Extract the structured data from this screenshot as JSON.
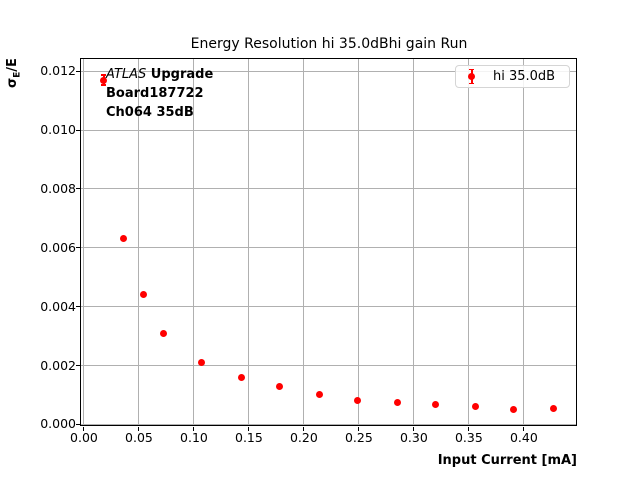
{
  "title": "Energy Resolution hi 35.0dBhi gain Run",
  "axes": {
    "xlabel": "Input Current [mA]",
    "ylabel": {
      "sigma": "σ",
      "sub": "E",
      "rest": "/E"
    }
  },
  "annotation": {
    "line1_italic": "ATLAS",
    "line1_bold": " Upgrade",
    "line2": "Board187722",
    "line3": "Ch064 35dB"
  },
  "legend": {
    "label": "hi 35.0dB"
  },
  "colors": {
    "marker": "#ff0000",
    "grid": "#b0b0b0",
    "axis": "#000000",
    "legend_border": "#d5d5d5",
    "text": "#000000"
  },
  "chart_data": {
    "type": "scatter",
    "title": "Energy Resolution hi 35.0dBhi gain Run",
    "xlabel": "Input Current [mA]",
    "ylabel": "σ_E/E",
    "grid": true,
    "legend_position": "upper right",
    "xlim": [
      -0.0027,
      0.4474
    ],
    "ylim": [
      -2e-05,
      0.012415
    ],
    "xticks": [
      0.0,
      0.05,
      0.1,
      0.15,
      0.2,
      0.25,
      0.3,
      0.35,
      0.4
    ],
    "xtick_labels": [
      "0.00",
      "0.05",
      "0.10",
      "0.15",
      "0.20",
      "0.25",
      "0.30",
      "0.35",
      "0.40"
    ],
    "yticks": [
      0.0,
      0.002,
      0.004,
      0.006,
      0.008,
      0.01,
      0.012
    ],
    "ytick_labels": [
      "0.000",
      "0.002",
      "0.004",
      "0.006",
      "0.008",
      "0.010",
      "0.012"
    ],
    "series": [
      {
        "name": "hi 35.0dB",
        "color": "#ff0000",
        "marker": "circle",
        "points": [
          {
            "x": 0.018,
            "y": 0.0117,
            "yerr": 0.00017
          },
          {
            "x": 0.036,
            "y": 0.0063
          },
          {
            "x": 0.054,
            "y": 0.0044
          },
          {
            "x": 0.072,
            "y": 0.0031
          },
          {
            "x": 0.107,
            "y": 0.0021
          },
          {
            "x": 0.143,
            "y": 0.0016
          },
          {
            "x": 0.178,
            "y": 0.0013
          },
          {
            "x": 0.214,
            "y": 0.00102
          },
          {
            "x": 0.249,
            "y": 0.00082
          },
          {
            "x": 0.285,
            "y": 0.00075
          },
          {
            "x": 0.32,
            "y": 0.00068
          },
          {
            "x": 0.356,
            "y": 0.0006
          },
          {
            "x": 0.391,
            "y": 0.00052
          },
          {
            "x": 0.427,
            "y": 0.00054
          }
        ]
      }
    ]
  }
}
